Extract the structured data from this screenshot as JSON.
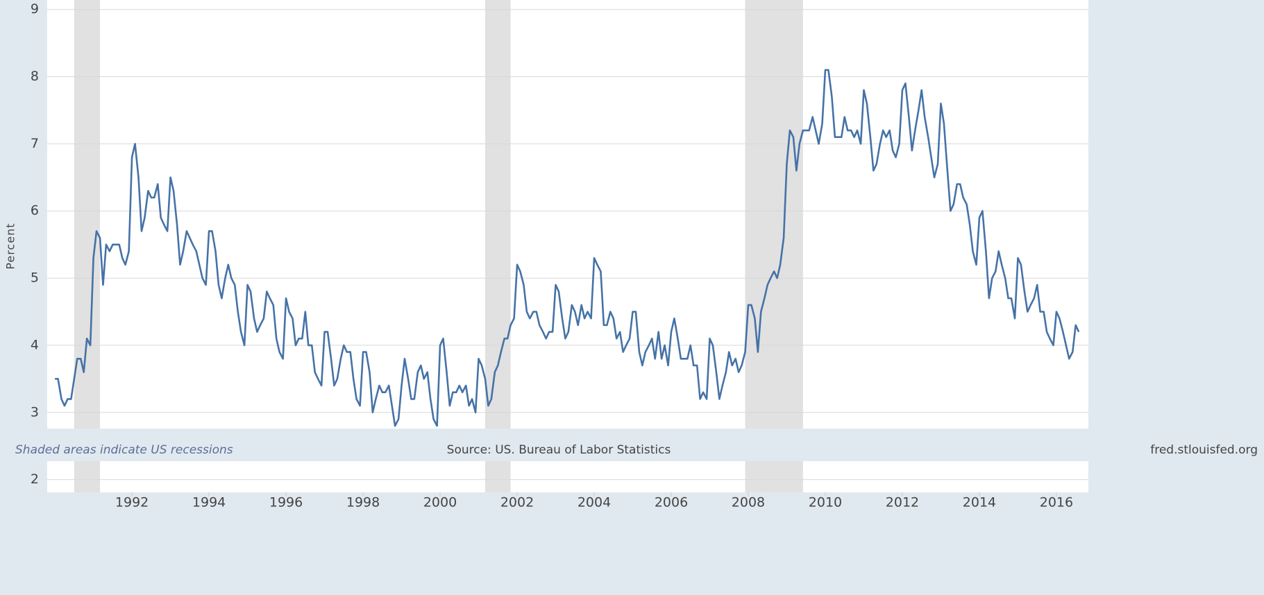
{
  "chart_data": {
    "type": "line",
    "ylabel": "Percent",
    "note": "Shaded areas indicate US recessions",
    "source": "Source: US. Bureau of Labor Statistics",
    "site": "fred.stlouisfed.org",
    "xlim": [
      1989.8,
      2016.83
    ],
    "ylim": [
      1.81,
      9.09
    ],
    "xticks": [
      1992,
      1994,
      1996,
      1998,
      2000,
      2002,
      2004,
      2006,
      2008,
      2010,
      2012,
      2014,
      2016
    ],
    "yticks": [
      2,
      3,
      4,
      5,
      6,
      7,
      8,
      9
    ],
    "grid": true,
    "recessions": [
      [
        1990.5,
        1991.17
      ],
      [
        2001.17,
        2001.83
      ],
      [
        2007.92,
        2009.42
      ]
    ],
    "recession_color": "#e1e1e1",
    "x": [
      1990,
      1990.08,
      1990.17,
      1990.25,
      1990.33,
      1990.42,
      1990.5,
      1990.58,
      1990.67,
      1990.75,
      1990.83,
      1990.92,
      1991,
      1991.08,
      1991.17,
      1991.25,
      1991.33,
      1991.42,
      1991.5,
      1991.58,
      1991.67,
      1991.75,
      1991.83,
      1991.92,
      1992,
      1992.08,
      1992.17,
      1992.25,
      1992.33,
      1992.42,
      1992.5,
      1992.58,
      1992.67,
      1992.75,
      1992.83,
      1992.92,
      1993,
      1993.08,
      1993.17,
      1993.25,
      1993.33,
      1993.42,
      1993.5,
      1993.58,
      1993.67,
      1993.75,
      1993.83,
      1993.92,
      1994,
      1994.08,
      1994.17,
      1994.25,
      1994.33,
      1994.42,
      1994.5,
      1994.58,
      1994.67,
      1994.75,
      1994.83,
      1994.92,
      1995,
      1995.08,
      1995.17,
      1995.25,
      1995.33,
      1995.42,
      1995.5,
      1995.58,
      1995.67,
      1995.75,
      1995.83,
      1995.92,
      1996,
      1996.08,
      1996.17,
      1996.25,
      1996.33,
      1996.42,
      1996.5,
      1996.58,
      1996.67,
      1996.75,
      1996.83,
      1996.92,
      1997,
      1997.08,
      1997.17,
      1997.25,
      1997.33,
      1997.42,
      1997.5,
      1997.58,
      1997.67,
      1997.75,
      1997.83,
      1997.92,
      1998,
      1998.08,
      1998.17,
      1998.25,
      1998.33,
      1998.42,
      1998.5,
      1998.58,
      1998.67,
      1998.75,
      1998.83,
      1998.92,
      1999,
      1999.08,
      1999.17,
      1999.25,
      1999.33,
      1999.42,
      1999.5,
      1999.58,
      1999.67,
      1999.75,
      1999.83,
      1999.92,
      2000,
      2000.08,
      2000.17,
      2000.25,
      2000.33,
      2000.42,
      2000.5,
      2000.58,
      2000.67,
      2000.75,
      2000.83,
      2000.92,
      2001,
      2001.08,
      2001.17,
      2001.25,
      2001.33,
      2001.42,
      2001.5,
      2001.58,
      2001.67,
      2001.75,
      2001.83,
      2001.92,
      2002,
      2002.08,
      2002.17,
      2002.25,
      2002.33,
      2002.42,
      2002.5,
      2002.58,
      2002.67,
      2002.75,
      2002.83,
      2002.92,
      2003,
      2003.08,
      2003.17,
      2003.25,
      2003.33,
      2003.42,
      2003.5,
      2003.58,
      2003.67,
      2003.75,
      2003.83,
      2003.92,
      2004,
      2004.08,
      2004.17,
      2004.25,
      2004.33,
      2004.42,
      2004.5,
      2004.58,
      2004.67,
      2004.75,
      2004.83,
      2004.92,
      2005,
      2005.08,
      2005.17,
      2005.25,
      2005.33,
      2005.42,
      2005.5,
      2005.58,
      2005.67,
      2005.75,
      2005.83,
      2005.92,
      2006,
      2006.08,
      2006.17,
      2006.25,
      2006.33,
      2006.42,
      2006.5,
      2006.58,
      2006.67,
      2006.75,
      2006.83,
      2006.92,
      2007,
      2007.08,
      2007.17,
      2007.25,
      2007.33,
      2007.42,
      2007.5,
      2007.58,
      2007.67,
      2007.75,
      2007.83,
      2007.92,
      2008,
      2008.08,
      2008.17,
      2008.25,
      2008.33,
      2008.42,
      2008.5,
      2008.58,
      2008.67,
      2008.75,
      2008.83,
      2008.92,
      2009,
      2009.08,
      2009.17,
      2009.25,
      2009.33,
      2009.42,
      2009.5,
      2009.58,
      2009.67,
      2009.75,
      2009.83,
      2009.92,
      2010,
      2010.08,
      2010.17,
      2010.25,
      2010.33,
      2010.42,
      2010.5,
      2010.58,
      2010.67,
      2010.75,
      2010.83,
      2010.92,
      2011,
      2011.08,
      2011.17,
      2011.25,
      2011.33,
      2011.42,
      2011.5,
      2011.58,
      2011.67,
      2011.75,
      2011.83,
      2011.92,
      2012,
      2012.08,
      2012.17,
      2012.25,
      2012.33,
      2012.42,
      2012.5,
      2012.58,
      2012.67,
      2012.75,
      2012.83,
      2012.92,
      2013,
      2013.08,
      2013.17,
      2013.25,
      2013.33,
      2013.42,
      2013.5,
      2013.58,
      2013.67,
      2013.75,
      2013.83,
      2013.92,
      2014,
      2014.08,
      2014.17,
      2014.25,
      2014.33,
      2014.42,
      2014.5,
      2014.58,
      2014.67,
      2014.75,
      2014.83,
      2014.92,
      2015,
      2015.08,
      2015.17,
      2015.25,
      2015.33,
      2015.42,
      2015.5,
      2015.58,
      2015.67,
      2015.75,
      2015.83,
      2015.92,
      2016,
      2016.08,
      2016.17,
      2016.25,
      2016.33,
      2016.42,
      2016.5,
      2016.58
    ],
    "series": [
      {
        "color": "#4572a7",
        "values": [
          3.5,
          3.5,
          3.2,
          3.1,
          3.2,
          3.2,
          3.5,
          3.8,
          3.8,
          3.6,
          4.1,
          4.0,
          5.3,
          5.7,
          5.6,
          4.9,
          5.5,
          5.4,
          5.5,
          5.5,
          5.5,
          5.3,
          5.2,
          5.4,
          6.8,
          7.0,
          6.5,
          5.7,
          5.9,
          6.3,
          6.2,
          6.2,
          6.4,
          5.9,
          5.8,
          5.7,
          6.5,
          6.3,
          5.8,
          5.2,
          5.4,
          5.7,
          5.6,
          5.5,
          5.4,
          5.2,
          5.0,
          4.9,
          5.7,
          5.7,
          5.4,
          4.9,
          4.7,
          5.0,
          5.2,
          5.0,
          4.9,
          4.5,
          4.2,
          4.0,
          4.9,
          4.8,
          4.4,
          4.2,
          4.3,
          4.4,
          4.8,
          4.7,
          4.6,
          4.1,
          3.9,
          3.8,
          4.7,
          4.5,
          4.4,
          4.0,
          4.1,
          4.1,
          4.5,
          4.0,
          4.0,
          3.6,
          3.5,
          3.4,
          4.2,
          4.2,
          3.8,
          3.4,
          3.5,
          3.8,
          4.0,
          3.9,
          3.9,
          3.5,
          3.2,
          3.1,
          3.9,
          3.9,
          3.6,
          3.0,
          3.2,
          3.4,
          3.3,
          3.3,
          3.4,
          3.1,
          2.8,
          2.9,
          3.4,
          3.8,
          3.5,
          3.2,
          3.2,
          3.6,
          3.7,
          3.5,
          3.6,
          3.2,
          2.9,
          2.8,
          4.0,
          4.1,
          3.6,
          3.1,
          3.3,
          3.3,
          3.4,
          3.3,
          3.4,
          3.1,
          3.2,
          3.0,
          3.8,
          3.7,
          3.5,
          3.1,
          3.2,
          3.6,
          3.7,
          3.9,
          4.1,
          4.1,
          4.3,
          4.4,
          5.2,
          5.1,
          4.9,
          4.5,
          4.4,
          4.5,
          4.5,
          4.3,
          4.2,
          4.1,
          4.2,
          4.2,
          4.9,
          4.8,
          4.4,
          4.1,
          4.2,
          4.6,
          4.5,
          4.3,
          4.6,
          4.4,
          4.5,
          4.4,
          5.3,
          5.2,
          5.1,
          4.3,
          4.3,
          4.5,
          4.4,
          4.1,
          4.2,
          3.9,
          4.0,
          4.1,
          4.5,
          4.5,
          3.9,
          3.7,
          3.9,
          4.0,
          4.1,
          3.8,
          4.2,
          3.8,
          4.0,
          3.7,
          4.2,
          4.4,
          4.1,
          3.8,
          3.8,
          3.8,
          4.0,
          3.7,
          3.7,
          3.2,
          3.3,
          3.2,
          4.1,
          4.0,
          3.6,
          3.2,
          3.4,
          3.6,
          3.9,
          3.7,
          3.8,
          3.6,
          3.7,
          3.9,
          4.6,
          4.6,
          4.4,
          3.9,
          4.5,
          4.7,
          4.9,
          5.0,
          5.1,
          5.0,
          5.2,
          5.6,
          6.7,
          7.2,
          7.1,
          6.6,
          7.0,
          7.2,
          7.2,
          7.2,
          7.4,
          7.2,
          7.0,
          7.3,
          8.1,
          8.1,
          7.7,
          7.1,
          7.1,
          7.1,
          7.4,
          7.2,
          7.2,
          7.1,
          7.2,
          7.0,
          7.8,
          7.6,
          7.1,
          6.6,
          6.7,
          7.0,
          7.2,
          7.1,
          7.2,
          6.9,
          6.8,
          7.0,
          7.8,
          7.9,
          7.4,
          6.9,
          7.2,
          7.5,
          7.8,
          7.4,
          7.1,
          6.8,
          6.5,
          6.7,
          7.6,
          7.3,
          6.6,
          6.0,
          6.1,
          6.4,
          6.4,
          6.2,
          6.1,
          5.8,
          5.4,
          5.2,
          5.9,
          6.0,
          5.4,
          4.7,
          5.0,
          5.1,
          5.4,
          5.2,
          5.0,
          4.7,
          4.7,
          4.4,
          5.3,
          5.2,
          4.8,
          4.5,
          4.6,
          4.7,
          4.9,
          4.5,
          4.5,
          4.2,
          4.1,
          4.0,
          4.5,
          4.4,
          4.2,
          4.0,
          3.8,
          3.9,
          4.3,
          4.2
        ]
      }
    ]
  }
}
